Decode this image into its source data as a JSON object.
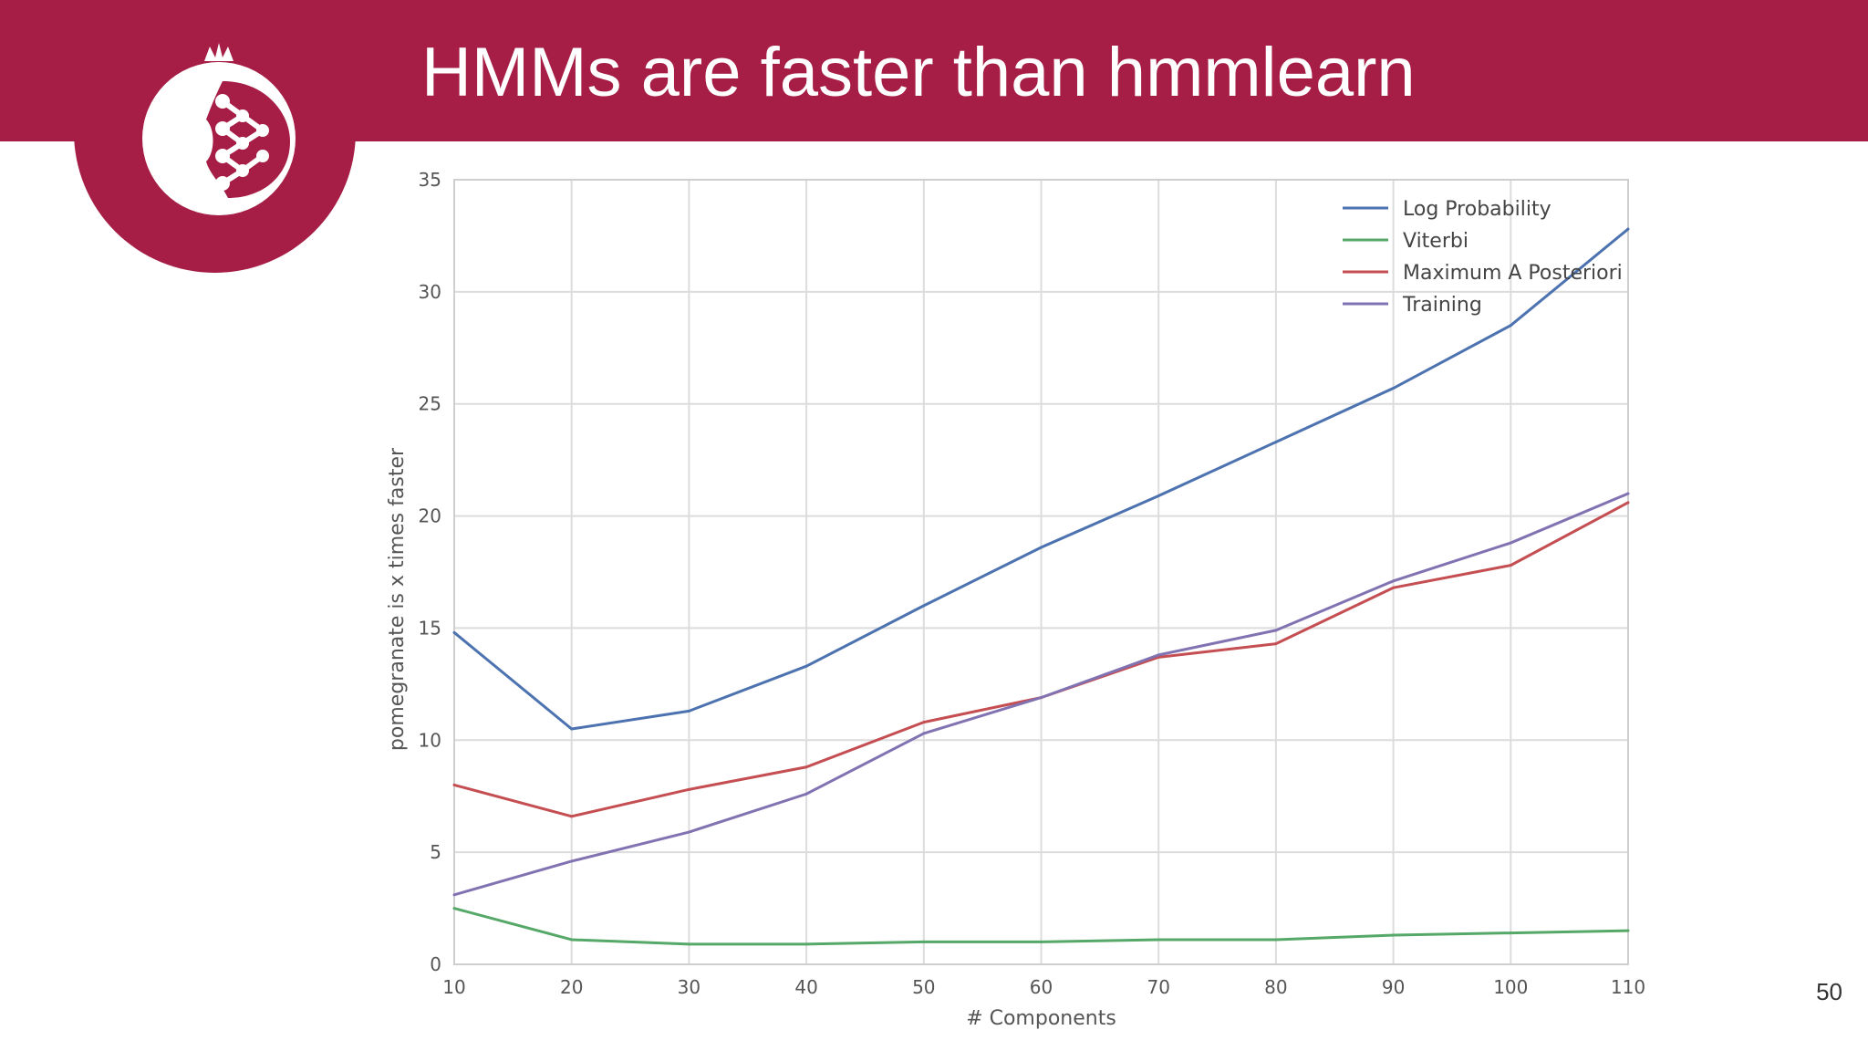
{
  "slide": {
    "title": "HMMs are faster than hmmlearn",
    "page_number": "50",
    "header_color": "#a61d45"
  },
  "logo": {
    "icon": "pomegranate-logo-icon",
    "color": "#a61d45"
  },
  "chart_data": {
    "type": "line",
    "title": "",
    "xlabel": "# Components",
    "ylabel": "pomegranate is x times faster",
    "x": [
      10,
      20,
      30,
      40,
      50,
      60,
      70,
      80,
      90,
      100,
      110
    ],
    "xlim": [
      10,
      110
    ],
    "ylim": [
      0,
      35
    ],
    "xticks": [
      "10",
      "20",
      "30",
      "40",
      "50",
      "60",
      "70",
      "80",
      "90",
      "100",
      "110"
    ],
    "yticks": [
      "0",
      "5",
      "10",
      "15",
      "20",
      "25",
      "30",
      "35"
    ],
    "grid": true,
    "legend_position": "top-right",
    "series": [
      {
        "name": "Log Probability",
        "color": "#4c72b0",
        "values": [
          14.8,
          10.5,
          11.3,
          13.3,
          16.0,
          18.6,
          20.9,
          23.3,
          25.7,
          28.5,
          32.8
        ]
      },
      {
        "name": "Viterbi",
        "color": "#55a868",
        "values": [
          2.5,
          1.1,
          0.9,
          0.9,
          1.0,
          1.0,
          1.1,
          1.1,
          1.3,
          1.4,
          1.5
        ]
      },
      {
        "name": "Maximum A Posteriori",
        "color": "#c44e52",
        "values": [
          8.0,
          6.6,
          7.8,
          8.8,
          10.8,
          11.9,
          13.7,
          14.3,
          16.8,
          17.8,
          20.6
        ]
      },
      {
        "name": "Training",
        "color": "#8172b2",
        "values": [
          3.1,
          4.6,
          5.9,
          7.6,
          10.3,
          11.9,
          13.8,
          14.9,
          17.1,
          18.8,
          21.0
        ]
      }
    ]
  }
}
